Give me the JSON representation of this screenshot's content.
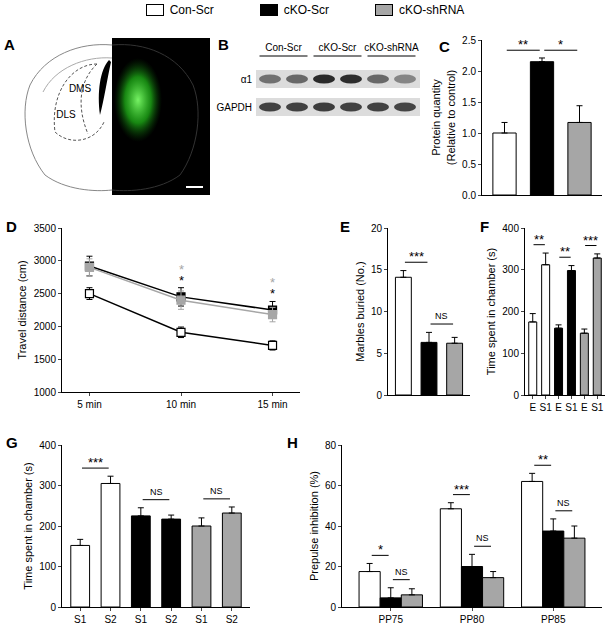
{
  "legend_items": [
    {
      "name": "Con-Scr",
      "color": "#ffffff"
    },
    {
      "name": "cKO-Scr",
      "color": "#000000"
    },
    {
      "name": "cKO-shRNA",
      "color": "#a6a6a6"
    }
  ],
  "panel_a": {
    "letter": "A",
    "regions": [
      "DMS",
      "DLS"
    ]
  },
  "panel_b": {
    "letter": "B",
    "groups": [
      "Con-Scr",
      "cKO-Scr",
      "cKO-shRNA"
    ],
    "bands": [
      "α1",
      "GAPDH"
    ]
  },
  "chart_data": [
    {
      "type": "bar",
      "title": "C",
      "categories": [
        null,
        null,
        null
      ],
      "values": [
        1.0,
        2.15,
        1.17
      ],
      "errors": [
        0.17,
        0.06,
        0.27
      ],
      "colors": [
        "#ffffff",
        "#000000",
        "#a6a6a6"
      ],
      "y_label": "Protein quantity\n(Relative to control)",
      "ylim": [
        0,
        2.5
      ],
      "yticks": [
        {
          "value": 0,
          "label": "0.0"
        },
        {
          "value": 0.5,
          "label": "0.5"
        },
        {
          "value": 1,
          "label": "1.0"
        },
        {
          "value": 1.5,
          "label": "1.5"
        },
        {
          "value": 2,
          "label": "2.0"
        },
        {
          "value": 2.5,
          "label": "2.5"
        }
      ],
      "tick_labels": "y",
      "brackets": [
        {
          "between": [
            0,
            1
          ],
          "text": "**"
        },
        {
          "between": [
            1,
            2
          ],
          "text": "*"
        }
      ]
    },
    {
      "type": "line",
      "title": "D",
      "categories": [
        "5 min",
        "10 min",
        "15 min"
      ],
      "marker": "square",
      "series": [
        {
          "name": "Con-Scr",
          "color": "#ffffff",
          "values": [
            2500,
            1910,
            1710
          ],
          "errors": [
            90,
            80,
            70
          ]
        },
        {
          "name": "cKO-Scr",
          "color": "#000000",
          "values": [
            2920,
            2450,
            2250
          ],
          "errors": [
            150,
            140,
            130
          ]
        },
        {
          "name": "cKO-shRNA",
          "color": "#a6a6a6",
          "values": [
            2900,
            2400,
            2180
          ],
          "errors": [
            130,
            140,
            110
          ]
        }
      ],
      "y_label": "Travel distance (cm)",
      "ylim": [
        1000,
        3500
      ],
      "yticks": [
        1000,
        1500,
        2000,
        2500,
        3000,
        3500
      ],
      "annotations": [
        {
          "category": "10 min",
          "series": "cKO-shRNA",
          "text": "*"
        },
        {
          "category": "10 min",
          "series": "cKO-Scr",
          "text": "*"
        },
        {
          "category": "15 min",
          "series": "cKO-shRNA",
          "text": "*"
        },
        {
          "category": "15 min",
          "series": "cKO-Scr",
          "text": "*"
        }
      ]
    },
    {
      "type": "bar",
      "title": "E",
      "categories": [
        null,
        null,
        null
      ],
      "values": [
        14.1,
        6.3,
        6.2
      ],
      "errors": [
        0.8,
        1.2,
        0.7
      ],
      "colors": [
        "#ffffff",
        "#000000",
        "#a6a6a6"
      ],
      "y_label": "Marbles buried (No.)",
      "ylim": [
        0,
        20
      ],
      "yticks": [
        0,
        5,
        10,
        15,
        20
      ],
      "tick_labels": "y",
      "brackets": [
        {
          "between": [
            0,
            1
          ],
          "text": "***"
        },
        {
          "between": [
            1,
            2
          ],
          "text": "NS"
        }
      ]
    },
    {
      "type": "bar",
      "title": "F",
      "categories": [
        "E",
        "S1",
        "E",
        "S1",
        "E",
        "S1"
      ],
      "values": [
        175,
        312,
        160,
        298,
        148,
        328
      ],
      "errors": [
        20,
        28,
        8,
        12,
        10,
        10
      ],
      "colors": [
        "#ffffff",
        "#ffffff",
        "#000000",
        "#000000",
        "#a6a6a6",
        "#a6a6a6"
      ],
      "y_label": "Time spent in chamber (s)",
      "ylim": [
        0,
        400
      ],
      "yticks": [
        0,
        100,
        200,
        300,
        400
      ],
      "brackets": [
        {
          "between": [
            0,
            1
          ],
          "text": "**"
        },
        {
          "between": [
            2,
            3
          ],
          "text": "**"
        },
        {
          "between": [
            4,
            5
          ],
          "text": "***"
        }
      ]
    },
    {
      "type": "bar",
      "title": "G",
      "categories": [
        "S1",
        "S2",
        "S1",
        "S2",
        "S1",
        "S2"
      ],
      "values": [
        152,
        305,
        225,
        217,
        200,
        232
      ],
      "errors": [
        15,
        18,
        20,
        10,
        20,
        15
      ],
      "colors": [
        "#ffffff",
        "#ffffff",
        "#000000",
        "#000000",
        "#a6a6a6",
        "#a6a6a6"
      ],
      "y_label": "Time spent in chamber (s)",
      "ylim": [
        0,
        400
      ],
      "yticks": [
        0,
        100,
        200,
        300,
        400
      ],
      "brackets": [
        {
          "between": [
            0,
            1
          ],
          "text": "***"
        },
        {
          "between": [
            2,
            3
          ],
          "text": "NS"
        },
        {
          "between": [
            4,
            5
          ],
          "text": "NS"
        }
      ]
    },
    {
      "type": "bar",
      "title": "H",
      "categories": [
        "PP75",
        "PP80",
        "PP85"
      ],
      "series": [
        {
          "name": "Con-Scr",
          "color": "#ffffff",
          "values": [
            17.5,
            48.5,
            62
          ],
          "errors": [
            4,
            3,
            4
          ]
        },
        {
          "name": "cKO-Scr",
          "color": "#000000",
          "values": [
            4.5,
            20,
            37.5
          ],
          "errors": [
            5,
            6,
            6
          ]
        },
        {
          "name": "cKO-shRNA",
          "color": "#a6a6a6",
          "values": [
            6,
            14.5,
            34
          ],
          "errors": [
            3,
            3,
            6
          ]
        }
      ],
      "y_label": "Prepulse inhibition (%)",
      "ylim": [
        0,
        80
      ],
      "yticks": [
        0,
        20,
        40,
        60,
        80
      ],
      "brackets": [
        {
          "category": "PP75",
          "between": [
            "Con-Scr",
            "cKO-Scr"
          ],
          "text": "*"
        },
        {
          "category": "PP75",
          "between": [
            "cKO-Scr",
            "cKO-shRNA"
          ],
          "text": "NS"
        },
        {
          "category": "PP80",
          "between": [
            "Con-Scr",
            "cKO-Scr"
          ],
          "text": "***"
        },
        {
          "category": "PP80",
          "between": [
            "cKO-Scr",
            "cKO-shRNA"
          ],
          "text": "NS"
        },
        {
          "category": "PP85",
          "between": [
            "Con-Scr",
            "cKO-Scr"
          ],
          "text": "**"
        },
        {
          "category": "PP85",
          "between": [
            "cKO-Scr",
            "cKO-shRNA"
          ],
          "text": "NS"
        }
      ]
    }
  ]
}
